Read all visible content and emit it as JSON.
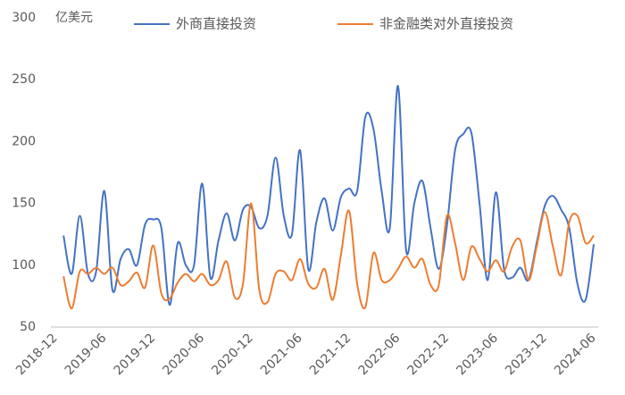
{
  "chart_data": {
    "type": "line",
    "y_label": "亿美元",
    "categories": [
      "2018-12",
      null,
      null,
      null,
      null,
      null,
      "2019-06",
      null,
      null,
      null,
      null,
      null,
      "2019-12",
      null,
      null,
      null,
      null,
      null,
      "2020-06",
      null,
      null,
      null,
      null,
      null,
      "2020-12",
      null,
      null,
      null,
      null,
      null,
      "2021-06",
      null,
      null,
      null,
      null,
      null,
      "2021-12",
      null,
      null,
      null,
      null,
      null,
      "2022-06",
      null,
      null,
      null,
      null,
      null,
      "2022-12",
      null,
      null,
      null,
      null,
      null,
      "2023-06",
      null,
      null,
      null,
      null,
      null,
      "2023-12",
      null,
      null,
      null,
      null,
      null,
      "2024-06"
    ],
    "series": [
      {
        "name": "外商直接投资",
        "color": "#4472c4",
        "values": [
          null,
          124,
          93,
          140,
          93,
          95,
          160,
          80,
          105,
          113,
          100,
          133,
          137,
          130,
          68,
          118,
          100,
          100,
          166,
          90,
          120,
          142,
          120,
          145,
          147,
          130,
          140,
          187,
          140,
          125,
          193,
          97,
          135,
          154,
          128,
          155,
          162,
          160,
          220,
          210,
          160,
          130,
          245,
          112,
          150,
          168,
          130,
          97,
          132,
          193,
          206,
          207,
          150,
          88,
          159,
          97,
          90,
          98,
          88,
          118,
          148,
          156,
          145,
          130,
          85,
          72,
          117
        ]
      },
      {
        "name": "非金融类对外直接投资",
        "color": "#ed7d31",
        "values": [
          null,
          91,
          65,
          95,
          93,
          98,
          93,
          98,
          84,
          87,
          94,
          82,
          116,
          77,
          73,
          86,
          93,
          87,
          93,
          84,
          88,
          103,
          74,
          85,
          150,
          80,
          70,
          93,
          95,
          88,
          105,
          85,
          82,
          97,
          72,
          108,
          144,
          85,
          66,
          110,
          88,
          88,
          97,
          107,
          98,
          105,
          84,
          84,
          140,
          118,
          88,
          115,
          105,
          95,
          104,
          95,
          115,
          120,
          88,
          115,
          143,
          115,
          92,
          135,
          140,
          118,
          124
        ]
      }
    ],
    "ylim": [
      50,
      300
    ],
    "yticks": [
      50,
      100,
      150,
      200,
      250,
      300
    ],
    "grid": false
  }
}
